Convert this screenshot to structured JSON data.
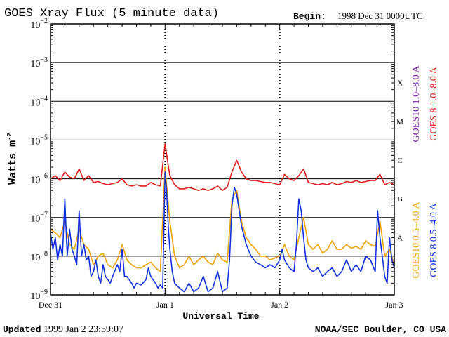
{
  "title": "GOES Xray Flux (5 minute data)",
  "begin_label": "Begin:",
  "begin_value": "1998 Dec 31 0000UTC",
  "ylabel": "Watts m",
  "ylabel_sup": "-2",
  "xlabel": "Universal Time",
  "updated_label": "Updated",
  "updated_value": "1999 Jan  2 23:59:07",
  "credit": "NOAA/SEC Boulder, CO USA",
  "chart_data": {
    "type": "line",
    "yscale": "log",
    "ylim": [
      1e-09,
      0.01
    ],
    "xlim_hours": [
      0,
      72
    ],
    "x_tick_labels": [
      {
        "label": "Dec 31",
        "hour": 0
      },
      {
        "label": "Jan 1",
        "hour": 24
      },
      {
        "label": "Jan 2",
        "hour": 48
      },
      {
        "label": "Jan 3",
        "hour": 72
      }
    ],
    "y_tick_exponents": [
      -9,
      -8,
      -7,
      -6,
      -5,
      -4,
      -3,
      -2
    ],
    "y_tick_base": "10",
    "flare_classes": [
      {
        "label": "A",
        "exponent": -8
      },
      {
        "label": "B",
        "exponent": -7
      },
      {
        "label": "C",
        "exponent": -6
      },
      {
        "label": "M",
        "exponent": -5
      },
      {
        "label": "X",
        "exponent": -4
      }
    ],
    "gridlines_exponents": [
      -8,
      -7,
      -6,
      -5,
      -4,
      -3
    ],
    "legend": [
      {
        "name": "GOES10 1.0–8.0 A",
        "color": "#7b1fa2"
      },
      {
        "name": "GOES 8 1.0–8.0 A",
        "color": "#e01b1b"
      },
      {
        "name": "GOES10 0.5–4.0 A",
        "color": "#f0a000"
      },
      {
        "name": "GOES 8 0.5–4.0 A",
        "color": "#1030e0"
      }
    ],
    "series": [
      {
        "name": "GOES 8 1.0–8.0 A",
        "color": "#e01b1b",
        "points": [
          [
            0,
            1e-06
          ],
          [
            1,
            1.2e-06
          ],
          [
            2,
            9e-07
          ],
          [
            3,
            1.5e-06
          ],
          [
            4,
            1.1e-06
          ],
          [
            5,
            1e-06
          ],
          [
            6,
            1.8e-06
          ],
          [
            7,
            9e-07
          ],
          [
            8,
            1.2e-06
          ],
          [
            9,
            8e-07
          ],
          [
            10,
            8.5e-07
          ],
          [
            11,
            7.5e-07
          ],
          [
            12,
            7e-07
          ],
          [
            13,
            7.5e-07
          ],
          [
            14,
            8e-07
          ],
          [
            15,
            1e-06
          ],
          [
            16,
            7e-07
          ],
          [
            17,
            6.5e-07
          ],
          [
            18,
            7e-07
          ],
          [
            19,
            6.5e-07
          ],
          [
            20,
            6.5e-07
          ],
          [
            21,
            8e-07
          ],
          [
            22,
            7e-07
          ],
          [
            23,
            6.5e-07
          ],
          [
            24,
            8e-06
          ],
          [
            24.5,
            3e-06
          ],
          [
            25,
            1.2e-06
          ],
          [
            26,
            7e-07
          ],
          [
            27,
            5.5e-07
          ],
          [
            28,
            5.5e-07
          ],
          [
            29,
            6e-07
          ],
          [
            30,
            5.5e-07
          ],
          [
            31,
            5e-07
          ],
          [
            32,
            5.5e-07
          ],
          [
            33,
            5e-07
          ],
          [
            34,
            5.5e-07
          ],
          [
            35,
            6.5e-07
          ],
          [
            36,
            5e-07
          ],
          [
            37,
            6e-07
          ],
          [
            38,
            1.5e-06
          ],
          [
            39,
            3e-06
          ],
          [
            40,
            1.5e-06
          ],
          [
            41,
            1e-06
          ],
          [
            42,
            9e-07
          ],
          [
            43,
            9e-07
          ],
          [
            44,
            8.5e-07
          ],
          [
            45,
            8e-07
          ],
          [
            46,
            8e-07
          ],
          [
            47,
            7.5e-07
          ],
          [
            48,
            7e-07
          ],
          [
            49,
            1.3e-06
          ],
          [
            50,
            1e-06
          ],
          [
            51,
            9e-07
          ],
          [
            52,
            1.2e-06
          ],
          [
            53,
            1.8e-06
          ],
          [
            54,
            8e-07
          ],
          [
            55,
            7.5e-07
          ],
          [
            56,
            7e-07
          ],
          [
            57,
            7.5e-07
          ],
          [
            58,
            7e-07
          ],
          [
            59,
            8e-07
          ],
          [
            60,
            7e-07
          ],
          [
            61,
            7.5e-07
          ],
          [
            62,
            8.5e-07
          ],
          [
            63,
            8e-07
          ],
          [
            64,
            9e-07
          ],
          [
            65,
            8e-07
          ],
          [
            66,
            8.5e-07
          ],
          [
            67,
            9e-07
          ],
          [
            68,
            9e-07
          ],
          [
            69,
            1.3e-06
          ],
          [
            70,
            7e-07
          ],
          [
            71,
            8e-07
          ],
          [
            72,
            7e-07
          ]
        ]
      },
      {
        "name": "GOES10 0.5–4.0 A",
        "color": "#f0a000",
        "points": [
          [
            0,
            5e-08
          ],
          [
            1,
            4e-08
          ],
          [
            2,
            3e-08
          ],
          [
            3,
            8e-08
          ],
          [
            4,
            2e-08
          ],
          [
            5,
            1.5e-08
          ],
          [
            6,
            5e-08
          ],
          [
            7,
            2e-08
          ],
          [
            8,
            1.5e-08
          ],
          [
            9,
            6e-09
          ],
          [
            10,
            1e-08
          ],
          [
            11,
            1.2e-08
          ],
          [
            12,
            6e-09
          ],
          [
            13,
            5e-09
          ],
          [
            14,
            8e-09
          ],
          [
            15,
            2e-08
          ],
          [
            16,
            8e-09
          ],
          [
            17,
            6e-09
          ],
          [
            18,
            5e-09
          ],
          [
            19,
            5e-09
          ],
          [
            20,
            6e-09
          ],
          [
            21,
            7e-09
          ],
          [
            22,
            5e-09
          ],
          [
            23,
            4e-09
          ],
          [
            24,
            2e-06
          ],
          [
            25,
            8e-08
          ],
          [
            26,
            1e-08
          ],
          [
            27,
            5e-09
          ],
          [
            28,
            6e-09
          ],
          [
            29,
            1e-08
          ],
          [
            30,
            6e-09
          ],
          [
            31,
            8e-09
          ],
          [
            32,
            1e-08
          ],
          [
            33,
            7e-09
          ],
          [
            34,
            6e-09
          ],
          [
            35,
            1.2e-08
          ],
          [
            36,
            8e-09
          ],
          [
            37,
            7e-09
          ],
          [
            38,
            3e-07
          ],
          [
            39,
            5e-07
          ],
          [
            40,
            8e-08
          ],
          [
            41,
            3e-08
          ],
          [
            42,
            2e-08
          ],
          [
            43,
            1.5e-08
          ],
          [
            44,
            1e-08
          ],
          [
            45,
            1e-08
          ],
          [
            46,
            8e-09
          ],
          [
            47,
            9e-09
          ],
          [
            48,
            1e-08
          ],
          [
            49,
            2e-08
          ],
          [
            50,
            1e-08
          ],
          [
            51,
            8e-09
          ],
          [
            52,
            3e-08
          ],
          [
            53,
            1e-07
          ],
          [
            54,
            2e-08
          ],
          [
            55,
            1.5e-08
          ],
          [
            56,
            2e-08
          ],
          [
            57,
            1.2e-08
          ],
          [
            58,
            1.5e-08
          ],
          [
            59,
            2.5e-08
          ],
          [
            60,
            1.5e-08
          ],
          [
            61,
            1.5e-08
          ],
          [
            62,
            2e-08
          ],
          [
            63,
            1.6e-08
          ],
          [
            64,
            1.8e-08
          ],
          [
            65,
            1.5e-08
          ],
          [
            66,
            2.5e-08
          ],
          [
            67,
            2e-08
          ],
          [
            68,
            1.8e-08
          ],
          [
            69,
            8e-08
          ],
          [
            70,
            1e-08
          ],
          [
            71,
            1.5e-08
          ],
          [
            72,
            6e-09
          ]
        ]
      },
      {
        "name": "GOES 8 0.5–4.0 A",
        "color": "#1030e0",
        "points": [
          [
            0,
            4e-08
          ],
          [
            0.5,
            1.5e-08
          ],
          [
            1,
            3e-08
          ],
          [
            1.5,
            8e-09
          ],
          [
            2,
            2e-08
          ],
          [
            2.5,
            1e-08
          ],
          [
            3,
            3e-07
          ],
          [
            3.5,
            1e-08
          ],
          [
            4,
            5e-08
          ],
          [
            4.5,
            1.5e-08
          ],
          [
            5,
            1e-08
          ],
          [
            5.5,
            6e-09
          ],
          [
            6,
            1.5e-07
          ],
          [
            6.5,
            1e-08
          ],
          [
            7,
            2e-08
          ],
          [
            7.5,
            8e-09
          ],
          [
            8,
            1e-08
          ],
          [
            8.5,
            3e-09
          ],
          [
            9,
            4e-09
          ],
          [
            9.5,
            8e-09
          ],
          [
            10,
            3e-09
          ],
          [
            10.5,
            2e-09
          ],
          [
            11,
            6e-09
          ],
          [
            11.5,
            3e-09
          ],
          [
            12,
            2.5e-09
          ],
          [
            12.5,
            2e-09
          ],
          [
            13,
            3e-09
          ],
          [
            14,
            6e-09
          ],
          [
            14.5,
            4e-09
          ],
          [
            15,
            1.5e-08
          ],
          [
            15.5,
            3e-09
          ],
          [
            16,
            3e-09
          ],
          [
            17,
            2e-09
          ],
          [
            17.5,
            1.5e-09
          ],
          [
            18,
            2e-09
          ],
          [
            19,
            1.8e-09
          ],
          [
            20,
            2.5e-09
          ],
          [
            20.5,
            5e-09
          ],
          [
            21,
            3e-09
          ],
          [
            22,
            2e-09
          ],
          [
            22.5,
            1.5e-09
          ],
          [
            23,
            1.8e-09
          ],
          [
            23.5,
            1.5e-09
          ],
          [
            24,
            1.5e-06
          ],
          [
            24.3,
            5e-07
          ],
          [
            24.7,
            5e-08
          ],
          [
            25,
            1.5e-08
          ],
          [
            25.5,
            4e-09
          ],
          [
            26,
            2e-09
          ],
          [
            27,
            1.5e-09
          ],
          [
            28,
            1.2e-09
          ],
          [
            29,
            2e-09
          ],
          [
            30,
            1.2e-09
          ],
          [
            31,
            1.5e-09
          ],
          [
            32,
            3e-09
          ],
          [
            33,
            1.2e-09
          ],
          [
            34,
            1.5e-09
          ],
          [
            35,
            4e-09
          ],
          [
            36,
            1.2e-09
          ],
          [
            37,
            1.5e-09
          ],
          [
            37.5,
            8e-09
          ],
          [
            38,
            2e-07
          ],
          [
            38.5,
            6e-07
          ],
          [
            39,
            4e-07
          ],
          [
            40,
            6e-08
          ],
          [
            41,
            2e-08
          ],
          [
            42,
            1e-08
          ],
          [
            43,
            7e-09
          ],
          [
            44,
            6e-09
          ],
          [
            45,
            5e-09
          ],
          [
            46,
            6e-09
          ],
          [
            47,
            5e-09
          ],
          [
            48,
            8e-09
          ],
          [
            48.5,
            1.5e-08
          ],
          [
            49,
            8e-09
          ],
          [
            50,
            5e-09
          ],
          [
            51,
            4e-09
          ],
          [
            51.5,
            2e-08
          ],
          [
            52,
            3e-07
          ],
          [
            52.5,
            1.5e-07
          ],
          [
            53,
            3e-08
          ],
          [
            53.5,
            8e-09
          ],
          [
            54,
            5e-09
          ],
          [
            55,
            4e-09
          ],
          [
            56,
            5e-09
          ],
          [
            57,
            3e-09
          ],
          [
            58,
            4e-09
          ],
          [
            59,
            5e-09
          ],
          [
            60,
            3e-09
          ],
          [
            61,
            4e-09
          ],
          [
            62,
            8e-09
          ],
          [
            63,
            4e-09
          ],
          [
            64,
            6e-09
          ],
          [
            65,
            4e-09
          ],
          [
            66,
            1e-08
          ],
          [
            67,
            8e-09
          ],
          [
            68,
            4e-09
          ],
          [
            68.5,
            1.5e-07
          ],
          [
            69,
            3e-08
          ],
          [
            70,
            3e-09
          ],
          [
            70.5,
            2e-09
          ],
          [
            71,
            3e-08
          ],
          [
            71.5,
            8e-09
          ],
          [
            72,
            5e-09
          ]
        ]
      }
    ]
  }
}
